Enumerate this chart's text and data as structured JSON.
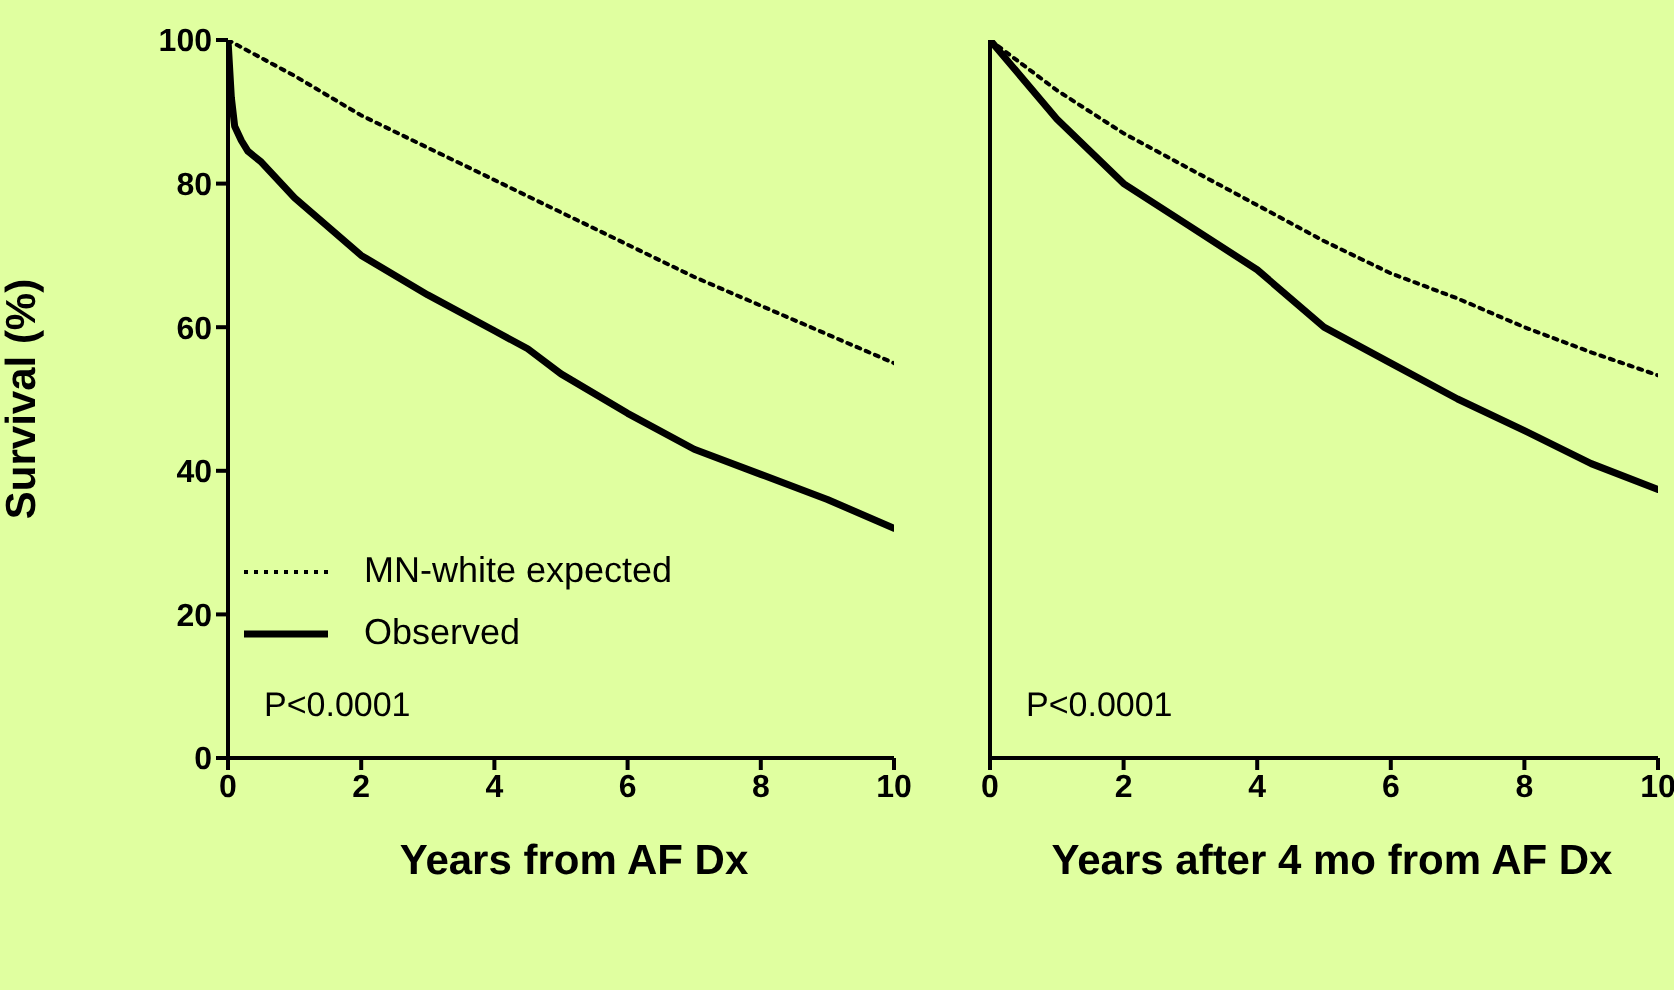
{
  "chart_data": [
    {
      "type": "line",
      "xlabel": "Years from AF Dx",
      "ylabel": "Survival (%)",
      "xlim": [
        0,
        10
      ],
      "xticks": [
        0,
        2,
        4,
        6,
        8,
        10
      ],
      "ylim": [
        0,
        100
      ],
      "yticks": [
        0,
        20,
        40,
        60,
        80,
        100
      ],
      "legend": "bottom left",
      "annotations": [
        "P<0.0001"
      ],
      "series": [
        {
          "name": "MN-white expected",
          "color": "#000000",
          "line_style": "dotted",
          "x": [
            0,
            1,
            2,
            3,
            4,
            5,
            6,
            7,
            8,
            9,
            10
          ],
          "values": [
            100,
            95,
            89.5,
            85,
            80.5,
            76,
            71.5,
            67,
            63,
            59,
            55
          ]
        },
        {
          "name": "Observed",
          "color": "#000000",
          "line_style": "solid",
          "x": [
            0,
            0.05,
            0.1,
            0.2,
            0.3,
            0.5,
            1,
            1.5,
            2,
            3,
            4,
            4.5,
            5,
            6,
            7,
            8,
            9,
            10
          ],
          "values": [
            100,
            92,
            88,
            86,
            84.5,
            83,
            78,
            74,
            70,
            64.5,
            59.5,
            57,
            53.5,
            48,
            43,
            39.5,
            36,
            32
          ]
        }
      ]
    },
    {
      "type": "line",
      "xlabel": "Years after 4 mo from AF Dx",
      "xlim": [
        0,
        10
      ],
      "xticks": [
        0,
        2,
        4,
        6,
        8,
        10
      ],
      "ylim": [
        0,
        100
      ],
      "yticks": [
        0,
        20,
        40,
        60,
        80,
        100
      ],
      "tick_labels": "x",
      "annotations": [
        "P<0.0001"
      ],
      "series": [
        {
          "color": "#000000",
          "line_style": "dotted",
          "x": [
            0,
            1,
            2,
            3,
            4,
            5,
            6,
            7,
            8,
            9,
            10
          ],
          "values": [
            100,
            93,
            87,
            82,
            77,
            72,
            67.5,
            64,
            60,
            56.5,
            53.3
          ]
        },
        {
          "color": "#000000",
          "line_style": "solid",
          "x": [
            0,
            1,
            2,
            3,
            4,
            5,
            6,
            7,
            8,
            9,
            10
          ],
          "values": [
            100,
            89,
            80,
            74,
            68,
            60,
            55,
            50,
            45.6,
            41,
            37.4
          ]
        }
      ]
    }
  ]
}
